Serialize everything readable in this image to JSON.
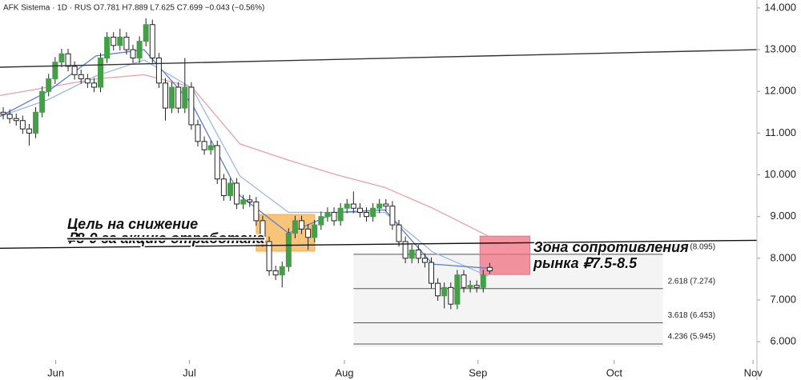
{
  "chart_data": {
    "type": "candlestick",
    "title": "AFK Sistema · 1D · RUS  O7.781  H7.889  L7.625  C7.699  −0.043 (−0.56%)",
    "xlim": [
      -0.5,
      116.2
    ],
    "xticks": [
      {
        "value": 8.1,
        "label": "Jun"
      },
      {
        "value": 28.7,
        "label": "Jul"
      },
      {
        "value": 52.6,
        "label": "Aug"
      },
      {
        "value": 73.2,
        "label": "Sep"
      },
      {
        "value": 94.2,
        "label": "Oct"
      },
      {
        "value": 115.6,
        "label": "Nov"
      }
    ],
    "ylim": [
      5.6,
      14.19
    ],
    "yticks": [
      {
        "value": 6,
        "label": "6.000"
      },
      {
        "value": 7,
        "label": "7.000"
      },
      {
        "value": 8,
        "label": "8.000"
      },
      {
        "value": 9,
        "label": "9.000"
      },
      {
        "value": 10,
        "label": "10.000"
      },
      {
        "value": 11,
        "label": "11.000"
      },
      {
        "value": 12,
        "label": "12.000"
      },
      {
        "value": 13,
        "label": "13.000"
      },
      {
        "value": 14,
        "label": "14.000"
      }
    ],
    "up_color": "#43a047",
    "down_color": "#ffffff",
    "wick_color": "#222222",
    "open": [
      11.5,
      11.45,
      11.35,
      11.3,
      11.1,
      11.0,
      11.5,
      12.0,
      12.3,
      12.7,
      12.9,
      12.6,
      12.4,
      12.3,
      12.2,
      12.1,
      12.8,
      13.3,
      13.1,
      13.3,
      13.0,
      12.8,
      13.2,
      13.6,
      12.8,
      12.2,
      11.6,
      12.1,
      11.6,
      12.1,
      11.2,
      10.8,
      10.6,
      10.7,
      9.9,
      9.5,
      9.8,
      9.3,
      9.4,
      9.35,
      8.9,
      8.4,
      7.7,
      7.6,
      7.8,
      8.6,
      8.9,
      8.7,
      8.5,
      8.8,
      9.0,
      9.1,
      8.9,
      9.2,
      9.3,
      9.2,
      9.1,
      9.0,
      9.2,
      9.3,
      9.25,
      8.8,
      8.4,
      8.0,
      8.2,
      8.0,
      7.9,
      7.4,
      7.1,
      7.3,
      6.9,
      7.6,
      7.3,
      7.35,
      7.3,
      7.781
    ],
    "high": [
      11.62,
      11.57,
      11.47,
      11.42,
      11.22,
      11.62,
      12.12,
      12.42,
      12.82,
      13.02,
      13.02,
      12.72,
      12.52,
      12.42,
      12.32,
      12.92,
      13.42,
      13.42,
      13.5,
      13.42,
      13.12,
      13.32,
      13.75,
      13.72,
      12.92,
      12.32,
      12.22,
      12.22,
      12.8,
      12.22,
      11.32,
      10.92,
      10.82,
      10.82,
      10.02,
      9.92,
      9.92,
      9.52,
      9.52,
      9.47,
      9.02,
      8.52,
      7.82,
      7.92,
      8.72,
      9.02,
      9.02,
      8.82,
      8.92,
      9.12,
      9.22,
      9.22,
      9.32,
      9.42,
      9.6,
      9.32,
      9.22,
      9.32,
      9.42,
      9.42,
      9.37,
      8.92,
      8.52,
      8.32,
      8.32,
      8.12,
      8.02,
      7.52,
      7.42,
      7.42,
      7.72,
      7.72,
      7.47,
      7.47,
      7.72,
      7.889
    ],
    "low": [
      11.33,
      11.23,
      11.18,
      10.98,
      10.7,
      10.88,
      11.38,
      11.88,
      12.18,
      12.58,
      12.48,
      12.28,
      12.18,
      12.08,
      11.98,
      11.98,
      12.68,
      12.98,
      12.98,
      12.88,
      12.68,
      12.68,
      13.08,
      12.68,
      12.08,
      11.3,
      11.48,
      11.48,
      11.48,
      11.08,
      10.68,
      10.48,
      10.48,
      9.78,
      9.38,
      9.38,
      9.18,
      9.18,
      9.23,
      8.78,
      8.28,
      7.58,
      7.48,
      7.3,
      7.68,
      8.48,
      8.58,
      8.2,
      8.38,
      8.68,
      8.88,
      8.78,
      8.78,
      9.08,
      9.08,
      8.98,
      8.88,
      8.88,
      9.08,
      9.13,
      8.68,
      8.28,
      7.88,
      7.88,
      7.88,
      7.78,
      7.28,
      6.98,
      6.8,
      6.78,
      6.78,
      7.18,
      7.18,
      7.18,
      7.18,
      7.625
    ],
    "close": [
      11.45,
      11.35,
      11.3,
      11.1,
      11.0,
      11.5,
      12.0,
      12.3,
      12.7,
      12.9,
      12.6,
      12.4,
      12.3,
      12.2,
      12.1,
      12.8,
      13.3,
      13.1,
      13.3,
      13.0,
      12.8,
      13.2,
      13.6,
      12.8,
      12.2,
      11.6,
      12.1,
      11.6,
      12.1,
      11.2,
      10.8,
      10.6,
      10.7,
      9.9,
      9.5,
      9.8,
      9.3,
      9.4,
      9.35,
      8.9,
      8.4,
      7.7,
      7.6,
      7.8,
      8.6,
      8.9,
      8.7,
      8.5,
      8.8,
      9.0,
      9.1,
      8.9,
      9.2,
      9.3,
      9.2,
      9.1,
      9.0,
      9.2,
      9.3,
      9.25,
      8.8,
      8.4,
      8.0,
      8.2,
      8.0,
      7.9,
      7.4,
      7.1,
      7.3,
      6.9,
      7.6,
      7.3,
      7.35,
      7.3,
      7.6,
      7.699
    ],
    "lines": [
      {
        "color": "#e8a0a8",
        "x": [
          -0.5,
          6.9,
          14.3,
          21.7,
          29.1,
          36.5,
          44,
          51.4,
          58.8,
          66.2,
          74.8
        ],
        "values": [
          11.9,
          12.1,
          12.3,
          12.4,
          12.1,
          10.74,
          10.35,
          10.0,
          9.7,
          9.2,
          8.53
        ]
      },
      {
        "color": "#9bb8e8",
        "x": [
          -0.5,
          6.9,
          14.3,
          21.7,
          29.1,
          36.5,
          44,
          51.4,
          58.8,
          66.2,
          74.8
        ],
        "values": [
          11.4,
          11.8,
          12.37,
          12.75,
          12.08,
          9.97,
          9.1,
          9.1,
          9.1,
          8.15,
          7.57
        ]
      },
      {
        "color": "#5b7fd0",
        "x": [
          -0.5,
          6.9,
          14.3,
          21.7,
          29.1,
          36.5,
          44,
          51.4,
          58.8,
          66.2,
          74.8
        ],
        "values": [
          11.4,
          12.0,
          12.85,
          13.0,
          11.7,
          9.5,
          8.6,
          9.1,
          9.16,
          7.86,
          7.76
        ]
      }
    ],
    "trendlines": [
      {
        "color": "#333333",
        "x": [
          -0.5,
          116.2
        ],
        "values": [
          12.58,
          13.0
        ]
      },
      {
        "color": "#111111",
        "x": [
          -0.5,
          116.2
        ],
        "values": [
          8.24,
          8.43
        ]
      }
    ],
    "fib_x": [
      54,
      101.7
    ],
    "fib_levels": [
      {
        "value": 8.095,
        "label": "1.618 (8.095)"
      },
      {
        "value": 7.274,
        "label": "2.618 (7.274)"
      },
      {
        "value": 6.453,
        "label": "3.618 (6.453)"
      },
      {
        "value": 5.945,
        "label": "4.236 (5.945)"
      }
    ],
    "zones": [
      {
        "color": "#f5b04a",
        "x": [
          39,
          48
        ],
        "y": [
          8.17,
          9.05
        ]
      },
      {
        "color": "#f07080",
        "x": [
          73.5,
          81.2
        ],
        "y": [
          7.61,
          8.53
        ]
      }
    ],
    "annotations": {
      "target": [
        "Цель на снижение",
        "₽8-9 за акцию отработана"
      ],
      "resistance": [
        "Зона сопротивления",
        "рынка ₽7.5-8.5"
      ]
    }
  }
}
